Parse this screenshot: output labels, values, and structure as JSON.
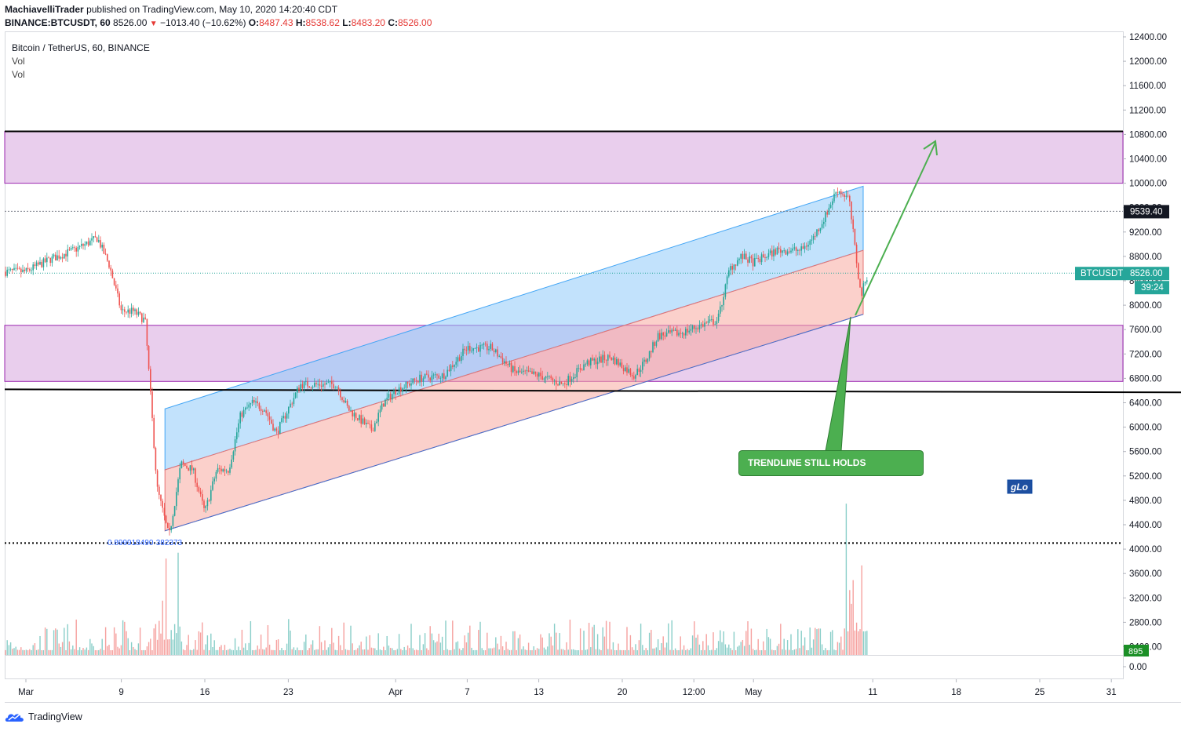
{
  "header": {
    "author": "MachiavelliTrader",
    "published_text": "published on TradingView.com, May 10, 2020 14:20:40 CDT",
    "symbol": "BINANCE:BTCUSDT, 60",
    "last_price": "8526.00",
    "change": "−1013.40 (−10.62%)",
    "o_label": "O:",
    "o_value": "8487.43",
    "h_label": "H:",
    "h_value": "8538.62",
    "l_label": "L:",
    "l_value": "8483.20",
    "c_label": "C:",
    "c_value": "8526.00"
  },
  "legend": {
    "title": "Bitcoin / TetherUS, 60, BINANCE",
    "vol1": "Vol",
    "vol2": "Vol"
  },
  "annotation": {
    "text": "TRENDLINE STILL HOLDS",
    "fib_label": "0.899918490·382373",
    "glo_label": "gLo"
  },
  "price_badges": {
    "line_9539": "9539.40",
    "symbol_badge": "BTCUSDT",
    "price_badge": "8526.00",
    "countdown": "39:24",
    "volume_badge": "895"
  },
  "footer": {
    "brand": "TradingView"
  },
  "colors": {
    "purple_zone": "#e1bee7",
    "channel_upper": "#bbdefb",
    "channel_lower": "#f8c9c4",
    "up_candle": "#26a69a",
    "down_candle": "#ef5350",
    "arrow_green": "#4caf50",
    "badge_teal": "#26a69a"
  },
  "chart_data": {
    "type": "candlestick",
    "title": "Bitcoin / TetherUS, 60, BINANCE",
    "y_ticks": [
      12400,
      12000,
      11600,
      11200,
      10800,
      10400,
      10000,
      9600,
      9200,
      8800,
      8400,
      8000,
      7600,
      7200,
      6800,
      6400,
      6000,
      5600,
      5200,
      4800,
      4400,
      4000,
      3600,
      3200,
      2800,
      2400,
      0
    ],
    "y_tick_labels": [
      "12400.00",
      "12000.00",
      "11600.00",
      "11200.00",
      "10800.00",
      "10400.00",
      "10000.00",
      "9600.00",
      "9200.00",
      "8800.00",
      "8400.00",
      "8000.00",
      "7600.00",
      "7200.00",
      "6800.00",
      "6400.00",
      "6000.00",
      "5600.00",
      "5200.00",
      "4800.00",
      "4400.00",
      "4000.00",
      "3600.00",
      "3200.00",
      "2800.00",
      "2400.00",
      "0.00"
    ],
    "x_tick_labels": [
      "Mar",
      "9",
      "16",
      "23",
      "Apr",
      "7",
      "13",
      "20",
      "12:00",
      "May",
      "11",
      "18",
      "25",
      "31"
    ],
    "x_tick_dates": [
      "2020-03-01",
      "2020-03-09",
      "2020-03-16",
      "2020-03-23",
      "2020-04-01",
      "2020-04-07",
      "2020-04-13",
      "2020-04-20",
      "2020-04-26",
      "2020-05-01",
      "2020-05-11",
      "2020-05-18",
      "2020-05-25",
      "2020-05-31"
    ],
    "price_path": [
      [
        "2020-03-01",
        8550
      ],
      [
        "2020-03-03",
        8750
      ],
      [
        "2020-03-05",
        8900
      ],
      [
        "2020-03-07",
        9100
      ],
      [
        "2020-03-08",
        8650
      ],
      [
        "2020-03-09",
        7900
      ],
      [
        "2020-03-10",
        7900
      ],
      [
        "2020-03-11",
        7750
      ],
      [
        "2020-03-12",
        5000
      ],
      [
        "2020-03-13",
        4200
      ],
      [
        "2020-03-14",
        5400
      ],
      [
        "2020-03-15",
        5300
      ],
      [
        "2020-03-16",
        4600
      ],
      [
        "2020-03-17",
        5300
      ],
      [
        "2020-03-18",
        5300
      ],
      [
        "2020-03-19",
        6200
      ],
      [
        "2020-03-20",
        6400
      ],
      [
        "2020-03-21",
        6300
      ],
      [
        "2020-03-22",
        5900
      ],
      [
        "2020-03-23",
        6300
      ],
      [
        "2020-03-24",
        6700
      ],
      [
        "2020-03-25",
        6700
      ],
      [
        "2020-03-27",
        6700
      ],
      [
        "2020-03-28",
        6300
      ],
      [
        "2020-03-30",
        5950
      ],
      [
        "2020-03-31",
        6400
      ],
      [
        "2020-04-01",
        6600
      ],
      [
        "2020-04-03",
        6800
      ],
      [
        "2020-04-05",
        6850
      ],
      [
        "2020-04-07",
        7300
      ],
      [
        "2020-04-09",
        7300
      ],
      [
        "2020-04-11",
        6900
      ],
      [
        "2020-04-13",
        6850
      ],
      [
        "2020-04-15",
        6700
      ],
      [
        "2020-04-17",
        7050
      ],
      [
        "2020-04-19",
        7150
      ],
      [
        "2020-04-21",
        6850
      ],
      [
        "2020-04-22",
        7100
      ],
      [
        "2020-04-23",
        7500
      ],
      [
        "2020-04-25",
        7550
      ],
      [
        "2020-04-27",
        7700
      ],
      [
        "2020-04-28",
        7750
      ],
      [
        "2020-04-29",
        8600
      ],
      [
        "2020-04-30",
        8800
      ],
      [
        "2020-05-01",
        8700
      ],
      [
        "2020-05-03",
        8900
      ],
      [
        "2020-05-05",
        8900
      ],
      [
        "2020-05-06",
        9100
      ],
      [
        "2020-05-07",
        9450
      ],
      [
        "2020-05-08",
        9900
      ],
      [
        "2020-05-09",
        9750
      ],
      [
        "2020-05-10",
        8150
      ],
      [
        "2020-05-10",
        8526
      ]
    ],
    "volume_baseline": 2400,
    "volume_spike": 895,
    "horizontal_lines": [
      10850,
      9539.4,
      8526,
      4100
    ],
    "zones": [
      [
        10000,
        10850
      ],
      [
        6750,
        7670
      ]
    ],
    "channel": {
      "upper_start": 6300,
      "upper_end": 9950,
      "mid_start": 5300,
      "mid_end": 8900,
      "lower_start": 4300,
      "lower_end": 7850
    }
  }
}
